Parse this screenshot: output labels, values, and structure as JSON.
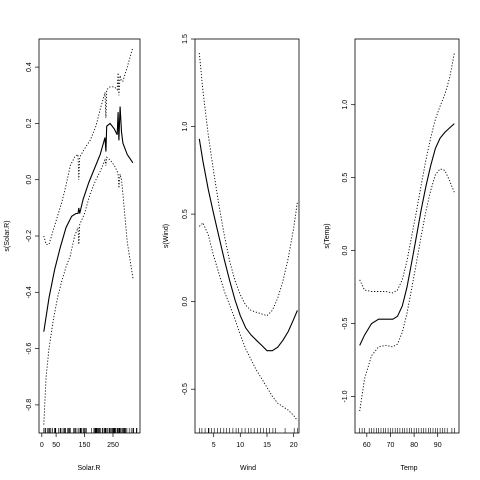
{
  "chart_data": [
    {
      "type": "line",
      "xlabel": "Solar.R",
      "ylabel": "s(Solar.R)",
      "xlim": [
        -10,
        345
      ],
      "ylim": [
        -0.9,
        0.5
      ],
      "xticks": [
        0,
        50,
        150,
        250
      ],
      "yticks": [
        -0.8,
        -0.6,
        -0.4,
        -0.2,
        0.0,
        0.2,
        0.4
      ],
      "xtick_labels": [
        "0",
        "50",
        "150",
        "250"
      ],
      "ytick_labels": [
        "-0.8",
        "-0.6",
        "-0.4",
        "-0.2",
        "0.0",
        "0.2",
        "0.4"
      ],
      "series": [
        {
          "style": "solid",
          "x": [
            7,
            25,
            45,
            65,
            85,
            105,
            120,
            127,
            130,
            133,
            145,
            165,
            185,
            205,
            222,
            225,
            228,
            240,
            255,
            265,
            268,
            271,
            275,
            280,
            285,
            300,
            320
          ],
          "y": [
            -0.54,
            -0.42,
            -0.32,
            -0.24,
            -0.17,
            -0.13,
            -0.12,
            -0.12,
            -0.1,
            -0.12,
            -0.07,
            -0.01,
            0.04,
            0.09,
            0.15,
            0.1,
            0.19,
            0.2,
            0.18,
            0.16,
            0.24,
            0.14,
            0.26,
            0.17,
            0.13,
            0.09,
            0.06
          ]
        },
        {
          "style": "dotted",
          "x": [
            7,
            15,
            25,
            40,
            55,
            70,
            85,
            100,
            115,
            127,
            130,
            133,
            150,
            170,
            190,
            205,
            222,
            225,
            228,
            240,
            255,
            265,
            268,
            271,
            275,
            280,
            285,
            300,
            320
          ],
          "y": [
            -0.2,
            -0.23,
            -0.23,
            -0.18,
            -0.13,
            -0.08,
            -0.02,
            0.05,
            0.08,
            0.09,
            0.0,
            0.08,
            0.11,
            0.14,
            0.19,
            0.25,
            0.31,
            0.22,
            0.32,
            0.33,
            0.33,
            0.32,
            0.38,
            0.3,
            0.37,
            0.35,
            0.35,
            0.4,
            0.47
          ]
        },
        {
          "style": "dotted",
          "x": [
            7,
            15,
            25,
            40,
            55,
            70,
            85,
            100,
            115,
            127,
            130,
            133,
            150,
            170,
            190,
            205,
            222,
            225,
            228,
            240,
            255,
            265,
            268,
            271,
            275,
            280,
            285,
            300,
            320
          ],
          "y": [
            -0.87,
            -0.7,
            -0.6,
            -0.5,
            -0.42,
            -0.36,
            -0.31,
            -0.27,
            -0.2,
            -0.17,
            -0.23,
            -0.16,
            -0.12,
            -0.05,
            0.0,
            0.03,
            0.07,
            0.05,
            0.08,
            0.07,
            0.05,
            0.03,
            0.02,
            -0.03,
            0.02,
            0.0,
            -0.05,
            -0.22,
            -0.35
          ]
        }
      ],
      "rug": [
        7,
        8,
        13,
        14,
        19,
        24,
        25,
        27,
        31,
        36,
        37,
        44,
        47,
        48,
        49,
        59,
        64,
        65,
        66,
        71,
        77,
        78,
        81,
        82,
        83,
        91,
        92,
        95,
        98,
        101,
        112,
        115,
        118,
        120,
        127,
        131,
        135,
        137,
        138,
        139,
        145,
        148,
        150,
        153,
        157,
        175,
        183,
        186,
        187,
        188,
        189,
        190,
        191,
        193,
        194,
        197,
        199,
        201,
        203,
        207,
        212,
        213,
        215,
        220,
        222,
        223,
        224,
        225,
        229,
        230,
        236,
        237,
        238,
        242,
        244,
        248,
        250,
        252,
        253,
        254,
        255,
        256,
        258,
        259,
        264,
        266,
        267,
        269,
        272,
        273,
        274,
        276,
        279,
        284,
        285,
        286,
        287,
        290,
        291,
        294,
        295,
        299,
        307,
        314,
        320,
        322,
        323,
        332,
        334
      ]
    },
    {
      "type": "line",
      "xlabel": "Wind",
      "ylabel": "s(Wind)",
      "xlim": [
        1.5,
        21
      ],
      "ylim": [
        -0.75,
        1.5
      ],
      "xticks": [
        5,
        10,
        15,
        20
      ],
      "yticks": [
        -0.5,
        0.0,
        0.5,
        1.0,
        1.5
      ],
      "xtick_labels": [
        "5",
        "10",
        "15",
        "20"
      ],
      "ytick_labels": [
        "-0.5",
        "0.0",
        "0.5",
        "1.0",
        "1.5"
      ],
      "series": [
        {
          "style": "solid",
          "x": [
            2.3,
            3,
            4,
            5,
            6,
            7,
            8,
            9,
            10,
            11,
            12,
            13,
            14,
            15,
            16,
            17,
            18,
            19,
            20,
            20.7
          ],
          "y": [
            0.93,
            0.8,
            0.64,
            0.5,
            0.37,
            0.24,
            0.12,
            0.01,
            -0.08,
            -0.15,
            -0.19,
            -0.22,
            -0.25,
            -0.28,
            -0.28,
            -0.26,
            -0.22,
            -0.17,
            -0.1,
            -0.05
          ]
        },
        {
          "style": "dotted",
          "x": [
            2.3,
            3,
            4,
            5,
            6,
            7,
            8,
            9,
            10,
            11,
            12,
            13,
            14,
            15,
            16,
            17,
            18,
            19,
            20,
            20.7
          ],
          "y": [
            1.42,
            1.2,
            0.95,
            0.74,
            0.55,
            0.38,
            0.23,
            0.12,
            0.04,
            -0.02,
            -0.05,
            -0.06,
            -0.07,
            -0.08,
            -0.05,
            0.02,
            0.12,
            0.25,
            0.42,
            0.57
          ]
        },
        {
          "style": "dotted",
          "x": [
            2.3,
            3,
            4,
            5,
            6,
            7,
            8,
            9,
            10,
            11,
            12,
            13,
            14,
            15,
            16,
            17,
            18,
            19,
            20,
            20.7
          ],
          "y": [
            0.43,
            0.45,
            0.38,
            0.26,
            0.16,
            0.06,
            -0.02,
            -0.1,
            -0.19,
            -0.27,
            -0.33,
            -0.39,
            -0.44,
            -0.49,
            -0.54,
            -0.58,
            -0.6,
            -0.62,
            -0.65,
            -0.68
          ]
        }
      ],
      "rug": [
        2.3,
        2.8,
        3.4,
        4.0,
        4.1,
        4.6,
        5.1,
        5.7,
        6.3,
        6.9,
        7.4,
        8.0,
        8.6,
        9.2,
        9.7,
        10.3,
        10.9,
        11.5,
        12.0,
        12.6,
        13.2,
        13.8,
        14.3,
        14.9,
        15.5,
        16.1,
        16.6,
        18.4,
        20.1,
        20.7
      ]
    },
    {
      "type": "line",
      "xlabel": "Temp",
      "ylabel": "s(Temp)",
      "xlim": [
        55,
        99
      ],
      "ylim": [
        -1.25,
        1.45
      ],
      "xticks": [
        60,
        70,
        80,
        90
      ],
      "yticks": [
        -1.0,
        -0.5,
        0.0,
        0.5,
        1.0
      ],
      "xtick_labels": [
        "60",
        "70",
        "80",
        "90"
      ],
      "ytick_labels": [
        "-1.0",
        "-0.5",
        "0.0",
        "0.5",
        "1.0"
      ],
      "series": [
        {
          "style": "solid",
          "x": [
            57,
            59,
            62,
            65,
            68,
            71,
            73,
            75,
            77,
            79,
            81,
            83,
            85,
            87,
            89,
            91,
            93,
            95,
            97
          ],
          "y": [
            -0.65,
            -0.58,
            -0.5,
            -0.47,
            -0.47,
            -0.47,
            -0.45,
            -0.38,
            -0.25,
            -0.08,
            0.1,
            0.28,
            0.44,
            0.58,
            0.7,
            0.77,
            0.81,
            0.84,
            0.87
          ]
        },
        {
          "style": "dotted",
          "x": [
            57,
            59,
            62,
            65,
            68,
            71,
            73,
            75,
            77,
            79,
            81,
            83,
            85,
            87,
            89,
            91,
            93,
            95,
            97
          ],
          "y": [
            -0.2,
            -0.27,
            -0.28,
            -0.28,
            -0.28,
            -0.29,
            -0.27,
            -0.2,
            -0.07,
            0.1,
            0.27,
            0.45,
            0.62,
            0.77,
            0.9,
            0.99,
            1.07,
            1.18,
            1.35
          ]
        },
        {
          "style": "dotted",
          "x": [
            57,
            59,
            62,
            65,
            68,
            71,
            73,
            75,
            77,
            79,
            81,
            83,
            85,
            87,
            89,
            91,
            93,
            95,
            97
          ],
          "y": [
            -1.1,
            -0.88,
            -0.72,
            -0.66,
            -0.65,
            -0.66,
            -0.64,
            -0.56,
            -0.43,
            -0.26,
            -0.08,
            0.1,
            0.27,
            0.41,
            0.52,
            0.56,
            0.55,
            0.48,
            0.4
          ]
        }
      ],
      "rug": [
        57,
        58,
        59,
        61,
        62,
        63,
        64,
        65,
        66,
        67,
        68,
        69,
        70,
        71,
        72,
        73,
        74,
        75,
        76,
        77,
        78,
        79,
        80,
        81,
        82,
        83,
        84,
        85,
        86,
        87,
        88,
        89,
        90,
        91,
        92,
        93,
        94,
        96,
        97
      ]
    }
  ]
}
